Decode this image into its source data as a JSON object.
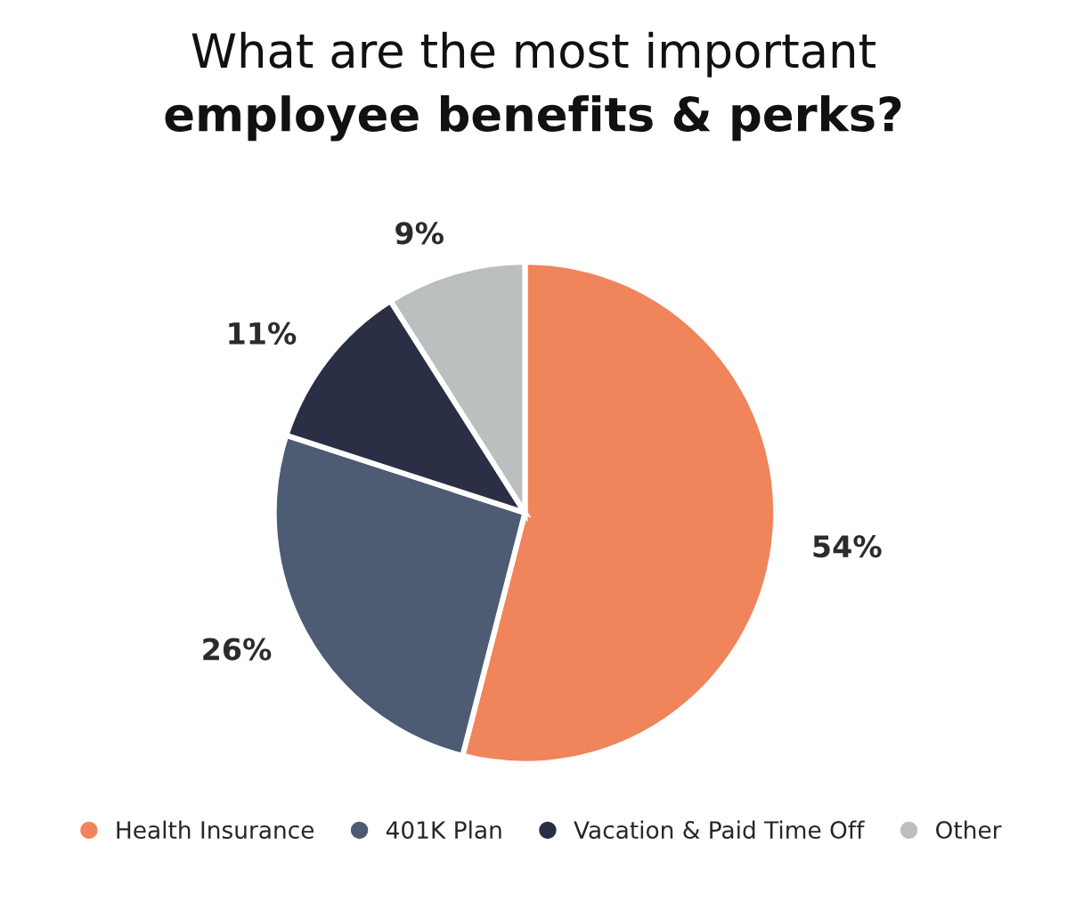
{
  "chart_data": {
    "type": "pie",
    "title": "What are the most important\nemployee benefits & perks?",
    "categories": [
      "Health Insurance",
      "401K Plan",
      "Vacation & Paid Time Off",
      "Other"
    ],
    "values": [
      54,
      26,
      11,
      9
    ],
    "colors": [
      "#f0845a",
      "#4d5b73",
      "#2b2f45",
      "#bcbfbf"
    ],
    "value_labels": [
      "54%",
      "26%",
      "11%",
      "9%"
    ],
    "legend": "bottom"
  }
}
